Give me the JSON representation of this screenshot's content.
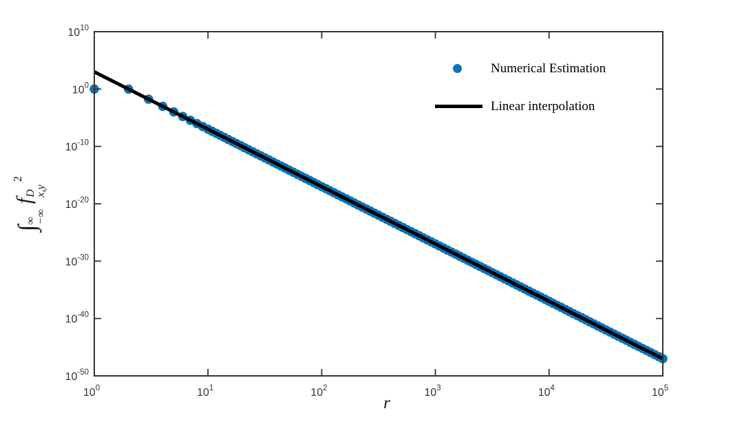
{
  "figure": {
    "background": "#ffffff",
    "legend": {
      "position": "upper right",
      "box": false,
      "items": [
        {
          "label": "Numerical Estimation",
          "marker": "dot",
          "color": "#0d73bb"
        },
        {
          "label": "Linear interpolation",
          "marker": "line",
          "color": "#000000"
        }
      ]
    },
    "ylabel_parts": {
      "integral": "∫",
      "upper_limit": "∞",
      "lower_limit": "−∞",
      "function": "f",
      "superscript": "D",
      "subscript": "x,y",
      "power": "2"
    }
  },
  "chart_data": {
    "type": "scatter",
    "title": "",
    "xlabel": "r",
    "ylabel": "∫_−∞^∞ (f_x,y^D)^2",
    "x_scale": "log",
    "y_scale": "log",
    "xlim": [
      1,
      100000
    ],
    "ylim": [
      1e-50,
      10000000000.0
    ],
    "x_tick_exponents": [
      0,
      1,
      2,
      3,
      4,
      5
    ],
    "y_tick_exponents": [
      10,
      0,
      -10,
      -20,
      -30,
      -40,
      -50
    ],
    "grid": false,
    "legend_position": "upper right",
    "series": [
      {
        "name": "Numerical Estimation",
        "type": "scatter",
        "color": "#0d73bb",
        "marker_radius": 6.8,
        "points": [
          [
            1,
            1.0
          ],
          [
            2,
            0.977
          ],
          [
            3,
            0.0169
          ],
          [
            4,
            0.000954
          ],
          [
            5,
            0.000102
          ],
          [
            6,
            1.65e-05
          ],
          [
            7,
            3.54e-06
          ],
          [
            8,
            9.31e-07
          ],
          [
            9,
            2.87e-07
          ],
          [
            10,
            1e-07
          ]
        ],
        "tail_rule": {
          "description": "dense points following y = 1000 * r^-10, log-uniform in r",
          "coefficient": 1000,
          "exponent": -10,
          "log10_r_from": 1,
          "log10_r_to": 5,
          "samples_per_decade": 28
        }
      },
      {
        "name": "Linear interpolation",
        "type": "line",
        "color": "#000000",
        "width": 5,
        "fit": {
          "coefficient": 1000,
          "exponent": -10
        },
        "x_range": [
          1,
          100000
        ]
      }
    ]
  },
  "style": {
    "axis_color": "#333333",
    "tick_label_color": "#333333",
    "tick_length": 10,
    "blue": "#0d73bb"
  }
}
